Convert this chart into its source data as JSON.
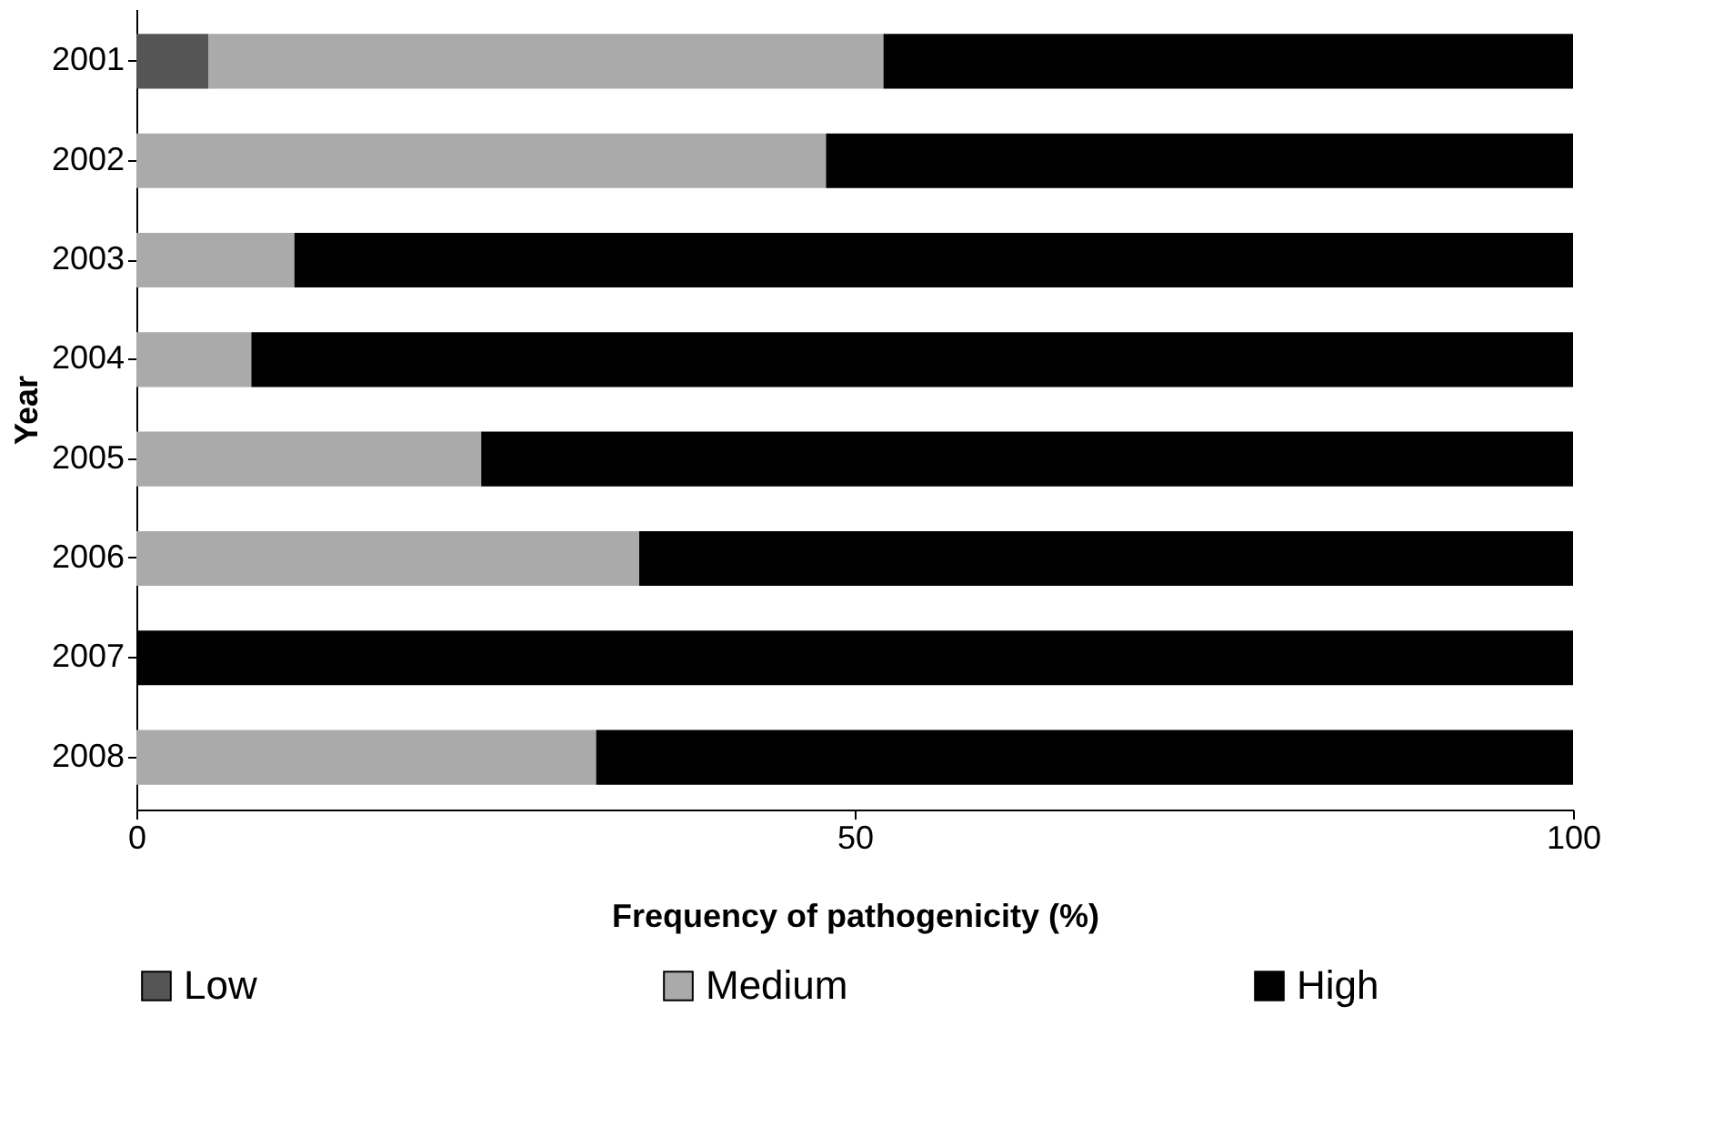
{
  "chart_data": {
    "type": "bar",
    "orientation": "horizontal",
    "stacked": true,
    "xlabel": "Frequency of pathogenicity (%)",
    "ylabel": "Year",
    "categories": [
      "2001",
      "2002",
      "2003",
      "2004",
      "2005",
      "2006",
      "2007",
      "2008"
    ],
    "series": [
      {
        "name": "Low",
        "color": "#555555",
        "values": [
          5,
          0,
          0,
          0,
          0,
          0,
          0,
          0
        ]
      },
      {
        "name": "Medium",
        "color": "#aaaaaa",
        "values": [
          47,
          48,
          11,
          8,
          24,
          35,
          0,
          32
        ]
      },
      {
        "name": "High",
        "color": "#000000",
        "values": [
          48,
          52,
          89,
          92,
          76,
          65,
          100,
          68
        ]
      }
    ],
    "xlim": [
      0,
      100
    ],
    "xticks": [
      0,
      50,
      100
    ],
    "grid": false,
    "legend": "bottom"
  }
}
